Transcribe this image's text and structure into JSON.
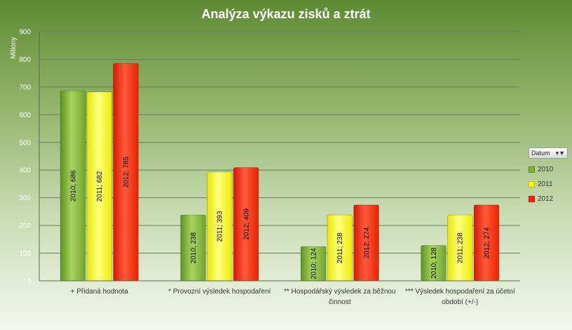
{
  "chart_data": {
    "type": "bar",
    "title": "Analýza výkazu zisků a ztrát",
    "ylabel": "Miliony",
    "ylim": [
      0,
      900
    ],
    "yticks": [
      0,
      100,
      200,
      300,
      400,
      500,
      600,
      700,
      800,
      900
    ],
    "grid": true,
    "legend_position": "right",
    "categories": [
      "+ Přidaná hodnota",
      "* Provozní výsledek hospodaření",
      "** Hospodářský výsledek za běžnou činnost",
      "*** Výsledek hospodaření za účetní období (+/-)"
    ],
    "category_lines": [
      [
        "+ Přidaná hodnota"
      ],
      [
        "* Provozní výsledek hospodaření"
      ],
      [
        "** Hospodářský výsledek za běžnou",
        "činnost"
      ],
      [
        "*** Výsledek hospodaření za účetní",
        "období (+/-)"
      ]
    ],
    "series": [
      {
        "name": "2010",
        "values": [
          686,
          238,
          124,
          128
        ],
        "color": "#7ab33a",
        "labels": [
          "2010; 686",
          "2010; 238",
          "2010; 124",
          "2010; 128"
        ]
      },
      {
        "name": "2011",
        "values": [
          682,
          393,
          238,
          238
        ],
        "color": "#ffff00",
        "labels": [
          "2011; 682",
          "2011; 393",
          "2011; 238",
          "2011; 238"
        ]
      },
      {
        "name": "2012",
        "values": [
          785,
          409,
          274,
          274
        ],
        "color": "#ff2200",
        "labels": [
          "2012; 785",
          "2012; 409",
          "2012; 274",
          "2012; 274"
        ]
      }
    ]
  },
  "legend": {
    "header": "Datum",
    "filter_icon": "filter-icon",
    "items": [
      "2010",
      "2011",
      "2012"
    ]
  }
}
